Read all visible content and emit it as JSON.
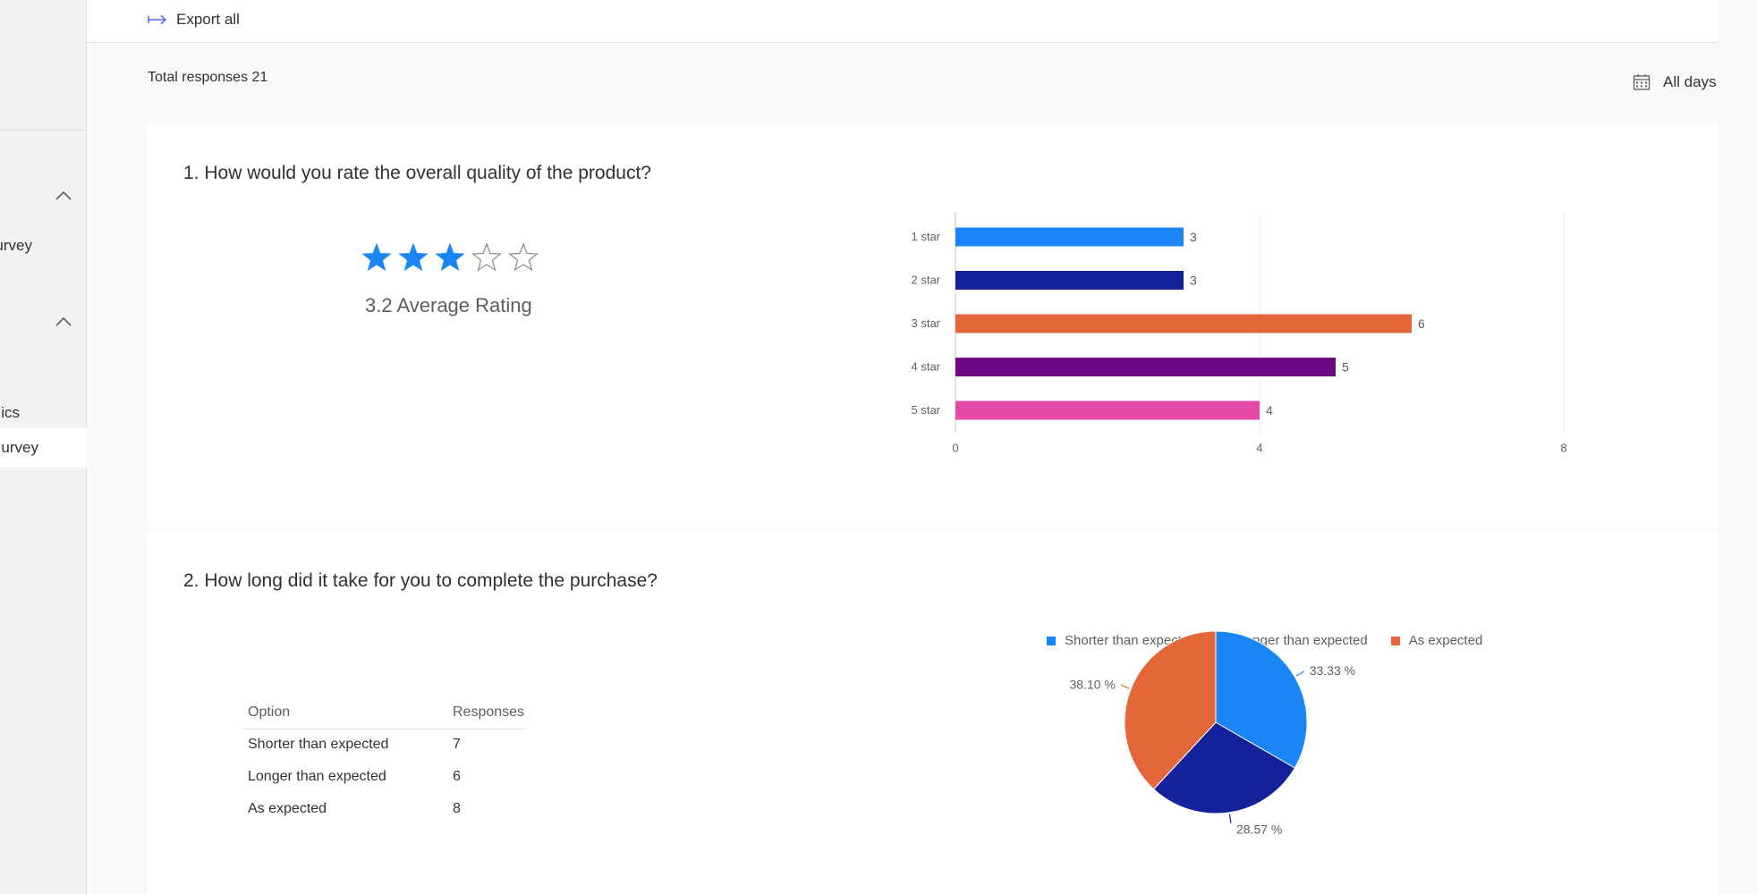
{
  "colors": {
    "accent": "#4f6bed",
    "star_filled": "#1a86f5",
    "star_empty": "#8a8886"
  },
  "sidebar": {
    "items": [
      {
        "label": "urvey"
      },
      {
        "label": "ics"
      },
      {
        "label": "urvey"
      }
    ]
  },
  "toolbar": {
    "export_label": "Export all"
  },
  "summary": {
    "total_responses_label": "Total responses 21",
    "date_filter_label": "All days"
  },
  "questions": [
    {
      "title": "1. How would you rate the overall quality of the product?",
      "rating": {
        "value": 3.2,
        "max": 5,
        "filled": 3,
        "label": "3.2 Average Rating"
      },
      "chart_data": {
        "type": "bar",
        "orientation": "horizontal",
        "categories": [
          "1 star",
          "2 star",
          "3 star",
          "4 star",
          "5 star"
        ],
        "values": [
          3,
          3,
          6,
          5,
          4
        ],
        "colors": [
          "#1a86f5",
          "#13219b",
          "#e4673a",
          "#6b0a82",
          "#e54aa8"
        ],
        "xlim": [
          0,
          8
        ],
        "xticks": [
          "0",
          "4",
          "8"
        ],
        "grid": true
      }
    },
    {
      "title": "2. How long did it take for you to complete the purchase?",
      "table": {
        "headers": [
          "Option",
          "Responses"
        ],
        "rows": [
          [
            "Shorter than expected",
            "7"
          ],
          [
            "Longer than expected",
            "6"
          ],
          [
            "As expected",
            "8"
          ]
        ]
      },
      "chart_data": {
        "type": "pie",
        "legend_position": "top",
        "categories": [
          "Shorter than expected",
          "Longer than expected",
          "As expected"
        ],
        "values": [
          7,
          6,
          8
        ],
        "labels": [
          "33.33 %",
          "28.57 %",
          "38.10 %"
        ],
        "colors": [
          "#1a86f5",
          "#13219b",
          "#e4673a"
        ]
      }
    }
  ]
}
